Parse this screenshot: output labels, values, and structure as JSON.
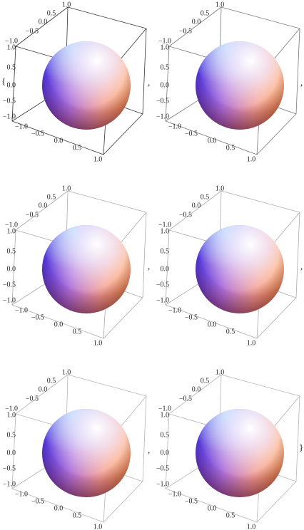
{
  "open_brace": "{",
  "close_brace": "}",
  "separators": [
    ",",
    ",",
    ",",
    ",",
    ","
  ],
  "panels": [
    {
      "box_color": "#333333",
      "top_axis": [
        "1.0",
        "0.5",
        "0.0",
        "−0.5",
        "−1.0"
      ],
      "left_axis": [
        "1.0",
        "0.5",
        "0.0",
        "−0.5",
        "−1.0"
      ],
      "bottom_axis": [
        "−1.0",
        "−0.5",
        "0.0",
        "0.5",
        "1.0"
      ]
    },
    {
      "box_color": "#777777",
      "top_axis": [
        "1.0",
        "0.5",
        "0.0",
        "−0.5",
        "−1.0"
      ],
      "left_axis": [
        "1.0",
        "0.5",
        "0.0",
        "−0.5",
        "−1.0"
      ],
      "bottom_axis": [
        "−1.0",
        "−0.5",
        "0.0",
        "0.5",
        "1.0"
      ]
    },
    {
      "box_color": "#aaaaaa",
      "top_axis": [
        "1.0",
        "0.5",
        "0.0",
        "−0.5",
        "−1.0"
      ],
      "left_axis": [
        "1.0",
        "0.5",
        "0.0",
        "−0.5",
        "−1.0"
      ],
      "bottom_axis": [
        "−1.0",
        "−0.5",
        "0.0",
        "0.5",
        "1.0"
      ]
    },
    {
      "box_color": "#aaaaaa",
      "top_axis": [
        "1.0",
        "0.5",
        "0.0",
        "−0.5",
        "−1.0"
      ],
      "left_axis": [
        "1.0",
        "0.5",
        "0.0",
        "−0.5",
        "−1.0"
      ],
      "bottom_axis": [
        "−1.0",
        "−0.5",
        "0.0",
        "0.5",
        "1.0"
      ]
    },
    {
      "box_color": "#b5b5b5",
      "top_axis": [
        "1.0",
        "0.5",
        "0.0",
        "−0.5",
        "−1.0"
      ],
      "left_axis": [
        "1.0",
        "0.5",
        "0.0",
        "−0.5",
        "−1.0"
      ],
      "bottom_axis": [
        "−1.0",
        "−0.5",
        "0.0",
        "0.5",
        "1.0"
      ]
    },
    {
      "box_color": "#b5b5b5",
      "top_axis": [
        "1.0",
        "0.5",
        "0.0",
        "−0.5",
        "−1.0"
      ],
      "left_axis": [
        "1.0",
        "0.5",
        "0.0",
        "−0.5",
        "−1.0"
      ],
      "bottom_axis": [
        "−1.0",
        "−0.5",
        "0.0",
        "0.5",
        "1.0"
      ]
    }
  ]
}
